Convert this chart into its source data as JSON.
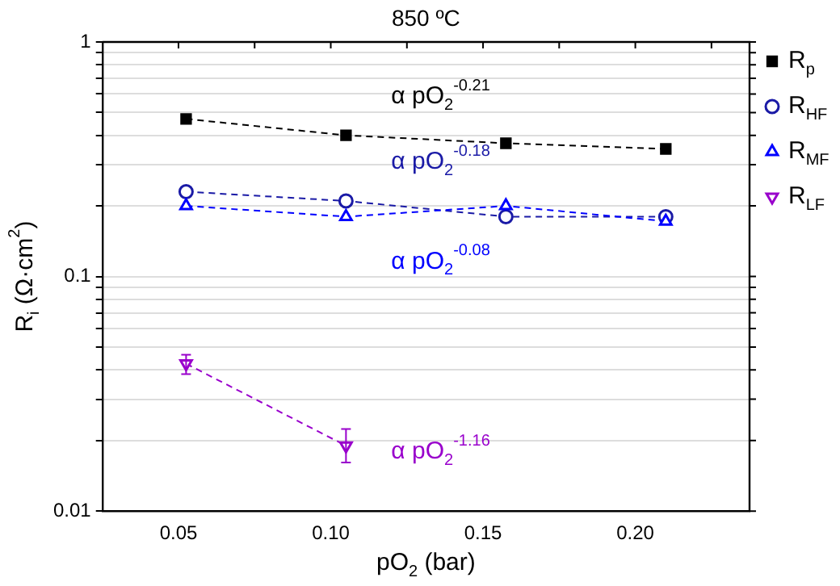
{
  "chart_data": {
    "type": "line",
    "title": "850 ºC",
    "xlabel": "pO$_{2}$ (bar)",
    "ylabel": "R$_{i}$ (Ω·cm$^{2}$)",
    "x": [
      0.0525,
      0.105,
      0.1575,
      0.21
    ],
    "series": [
      {
        "name": "R$_{p}$",
        "color": "#000000",
        "marker": "square",
        "values": [
          0.47,
          0.4,
          0.37,
          0.35
        ]
      },
      {
        "name": "R$_{HF}$",
        "color": "#1a1aa6",
        "marker": "circle",
        "values": [
          0.23,
          0.21,
          0.18,
          0.18
        ]
      },
      {
        "name": "R$_{MF}$",
        "color": "#0000ff",
        "marker": "triangle",
        "values": [
          0.2,
          0.18,
          0.2,
          0.172
        ]
      },
      {
        "name": "R$_{LF}$",
        "color": "#9900cc",
        "marker": "triangle-down",
        "values": [
          0.0425,
          0.019,
          null,
          null
        ],
        "errors": [
          [
            0.0384,
            0.0464
          ],
          [
            0.0161,
            0.0224
          ],
          null,
          null
        ]
      }
    ],
    "annotations": [
      "α pO$_{2}$$^{-0.21}$",
      "α pO$_{2}$$^{-0.18}$",
      "α pO$_{2}$$^{-0.08}$",
      "α pO$_{2}$$^{-1.16}$"
    ],
    "log": "y",
    "xlim": [
      0.025,
      0.2375
    ],
    "xticks": [
      {
        "value": 0.05,
        "label": "0.05"
      },
      {
        "value": 0.075,
        "label": null
      },
      {
        "value": 0.1,
        "label": "0.10"
      },
      {
        "value": 0.125,
        "label": null
      },
      {
        "value": 0.15,
        "label": "0.15"
      },
      {
        "value": 0.175,
        "label": null
      },
      {
        "value": 0.2,
        "label": "0.20"
      },
      {
        "value": 0.225,
        "label": null
      }
    ],
    "ylim": [
      0.01,
      1
    ],
    "yticks": [
      0.01,
      {
        "value": 0.02,
        "label": null
      },
      {
        "value": 0.03,
        "label": null
      },
      {
        "value": 0.04,
        "label": null
      },
      {
        "value": 0.05,
        "label": null
      },
      {
        "value": 0.06,
        "label": null
      },
      {
        "value": 0.07,
        "label": null
      },
      {
        "value": 0.08,
        "label": null
      },
      {
        "value": 0.09,
        "label": null
      },
      0.1,
      {
        "value": 0.2,
        "label": null
      },
      {
        "value": 0.3,
        "label": null
      },
      {
        "value": 0.4,
        "label": null
      },
      {
        "value": 0.5,
        "label": null
      },
      {
        "value": 0.6,
        "label": null
      },
      {
        "value": 0.7,
        "label": null
      },
      {
        "value": 0.8,
        "label": null
      },
      {
        "value": 0.9,
        "label": null
      },
      1
    ],
    "grid": "y",
    "legend": "right",
    "line_style": "dashed"
  }
}
